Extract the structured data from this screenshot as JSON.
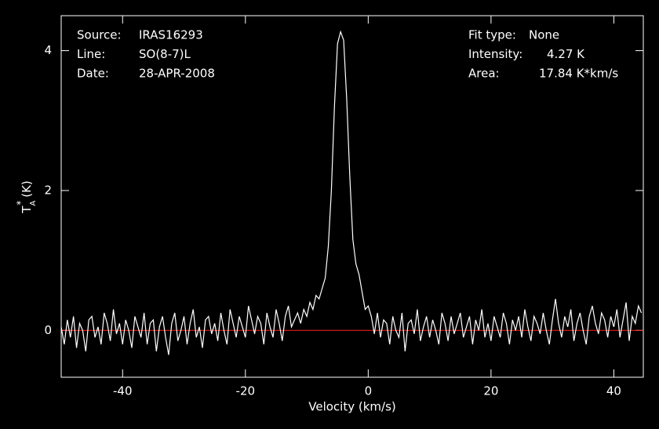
{
  "chart_data": {
    "type": "line",
    "xlabel": "Velocity (km/s)",
    "ylabel": {
      "base": "T",
      "sup": "*",
      "sub": "A",
      "unit": "(K)"
    },
    "info_left": [
      [
        "Source:",
        "IRAS16293"
      ],
      [
        "Line:",
        "SO(8-7)L"
      ],
      [
        "Date:",
        "28-APR-2008"
      ]
    ],
    "info_right": [
      [
        "Fit type:",
        "None"
      ],
      [
        "Intensity:",
        "4.27 K"
      ],
      [
        "Area:",
        "17.84 K*km/s"
      ]
    ],
    "xlim": [
      -50,
      44.8
    ],
    "ylim": [
      -0.67,
      4.5
    ],
    "xticks": [
      -40,
      -20,
      0,
      20,
      40
    ],
    "yticks": [
      0,
      2,
      4
    ],
    "baseline": 0,
    "baseline_color": "#ff2020",
    "series": [
      {
        "name": "spectrum",
        "color": "#ffffff",
        "x": [
          -50,
          -49.5,
          -49,
          -48.5,
          -48,
          -47.5,
          -47,
          -46.5,
          -46,
          -45.5,
          -45,
          -44.5,
          -44,
          -43.5,
          -43,
          -42.5,
          -42,
          -41.5,
          -41,
          -40.5,
          -40,
          -39.5,
          -39,
          -38.5,
          -38,
          -37.5,
          -37,
          -36.5,
          -36,
          -35.5,
          -35,
          -34.5,
          -34,
          -33.5,
          -33,
          -32.5,
          -32,
          -31.5,
          -31,
          -30.5,
          -30,
          -29.5,
          -29,
          -28.5,
          -28,
          -27.5,
          -27,
          -26.5,
          -26,
          -25.5,
          -25,
          -24.5,
          -24,
          -23.5,
          -23,
          -22.5,
          -22,
          -21.5,
          -21,
          -20.5,
          -20,
          -19.5,
          -19,
          -18.5,
          -18,
          -17.5,
          -17,
          -16.5,
          -16,
          -15.5,
          -15,
          -14.5,
          -14,
          -13.5,
          -13,
          -12.5,
          -12,
          -11.5,
          -11,
          -10.5,
          -10,
          -9.5,
          -9,
          -8.5,
          -8,
          -7.5,
          -7,
          -6.5,
          -6,
          -5.5,
          -5,
          -4.5,
          -4,
          -3.5,
          -3,
          -2.5,
          -2,
          -1.5,
          -1,
          -0.5,
          0,
          0.5,
          1,
          1.5,
          2,
          2.5,
          3,
          3.5,
          4,
          4.5,
          5,
          5.5,
          6,
          6.5,
          7,
          7.5,
          8,
          8.5,
          9,
          9.5,
          10,
          10.5,
          11,
          11.5,
          12,
          12.5,
          13,
          13.5,
          14,
          14.5,
          15,
          15.5,
          16,
          16.5,
          17,
          17.5,
          18,
          18.5,
          19,
          19.5,
          20,
          20.5,
          21,
          21.5,
          22,
          22.5,
          23,
          23.5,
          24,
          24.5,
          25,
          25.5,
          26,
          26.5,
          27,
          27.5,
          28,
          28.5,
          29,
          29.5,
          30,
          30.5,
          31,
          31.5,
          32,
          32.5,
          33,
          33.5,
          34,
          34.5,
          35,
          35.5,
          36,
          36.5,
          37,
          37.5,
          38,
          38.5,
          39,
          39.5,
          40,
          40.5,
          41,
          41.5,
          42,
          42.5,
          43,
          43.5,
          44,
          44.5
        ],
        "values": [
          0.05,
          -0.2,
          0.15,
          -0.1,
          0.2,
          -0.25,
          0.1,
          0.0,
          -0.3,
          0.15,
          0.2,
          -0.1,
          0.05,
          -0.2,
          0.25,
          0.1,
          -0.15,
          0.3,
          -0.05,
          0.1,
          -0.2,
          0.15,
          0.0,
          -0.25,
          0.2,
          0.05,
          -0.1,
          0.25,
          -0.2,
          0.1,
          0.15,
          -0.3,
          0.05,
          0.2,
          -0.1,
          -0.35,
          0.1,
          0.25,
          -0.15,
          0.0,
          0.2,
          -0.2,
          0.1,
          0.3,
          -0.1,
          0.05,
          -0.25,
          0.15,
          0.2,
          -0.05,
          0.1,
          -0.15,
          0.25,
          0.0,
          -0.2,
          0.3,
          0.1,
          -0.1,
          0.2,
          0.05,
          -0.1,
          0.35,
          0.15,
          -0.05,
          0.2,
          0.1,
          -0.2,
          0.25,
          0.05,
          -0.1,
          0.3,
          0.1,
          -0.15,
          0.2,
          0.35,
          0.05,
          0.15,
          0.25,
          0.1,
          0.3,
          0.2,
          0.4,
          0.3,
          0.5,
          0.45,
          0.6,
          0.75,
          1.2,
          2.0,
          3.2,
          4.1,
          4.27,
          4.15,
          3.3,
          2.2,
          1.3,
          0.95,
          0.8,
          0.55,
          0.3,
          0.35,
          0.2,
          -0.05,
          0.25,
          -0.1,
          0.15,
          0.1,
          -0.2,
          0.2,
          0.0,
          -0.1,
          0.25,
          -0.3,
          0.1,
          0.15,
          -0.05,
          0.3,
          -0.15,
          0.05,
          0.2,
          -0.1,
          0.15,
          0.0,
          -0.2,
          0.25,
          0.1,
          -0.15,
          0.2,
          -0.05,
          0.1,
          0.25,
          -0.1,
          0.05,
          0.2,
          -0.2,
          0.15,
          0.0,
          0.3,
          -0.1,
          0.1,
          -0.15,
          0.2,
          0.05,
          -0.1,
          0.25,
          0.1,
          -0.2,
          0.15,
          0.0,
          0.2,
          -0.1,
          0.3,
          0.05,
          -0.15,
          0.2,
          0.1,
          -0.05,
          0.25,
          0.0,
          -0.2,
          0.15,
          0.45,
          0.1,
          -0.1,
          0.2,
          0.05,
          0.3,
          -0.15,
          0.1,
          0.25,
          0.0,
          -0.2,
          0.2,
          0.35,
          0.1,
          -0.05,
          0.25,
          0.15,
          -0.1,
          0.2,
          0.05,
          0.3,
          -0.1,
          0.15,
          0.4,
          -0.15,
          0.2,
          0.1,
          0.35,
          0.25
        ]
      }
    ]
  }
}
